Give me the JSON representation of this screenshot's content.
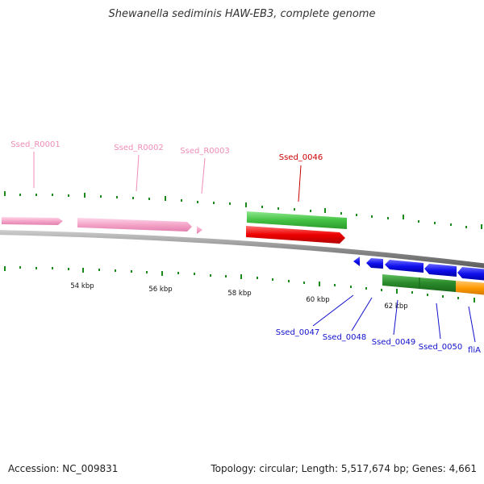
{
  "title": "Shewanella sediminis HAW-EB3, complete genome",
  "footer": {
    "accession": "Accession: NC_009831",
    "summary": "Topology: circular; Length: 5,517,674 bp; Genes: 4,661"
  },
  "scale_labels": [
    "54 kbp",
    "56 kbp",
    "58 kbp",
    "60 kbp",
    "62 kbp"
  ],
  "features": {
    "rna": [
      "Ssed_R0001",
      "Ssed_R0002",
      "Ssed_R0003"
    ],
    "highlighted": "Ssed_0046",
    "lower": [
      "Ssed_0047",
      "Ssed_0048",
      "Ssed_0049",
      "Ssed_0050",
      "fliA"
    ]
  },
  "colors": {
    "rna": "#f4a6c8",
    "rna_label": "#f08cb8",
    "highlight": "#ee0000",
    "highlight_label": "#cc0000",
    "cds_forward": "#44c244",
    "cds_reverse": "#1010ee",
    "cds_dark_green": "#2a8a2a",
    "cds_orange": "#ff9a00",
    "blue_label": "#1010cc",
    "tick": "#1a8a1a",
    "backbone": "#8c8c8c"
  }
}
